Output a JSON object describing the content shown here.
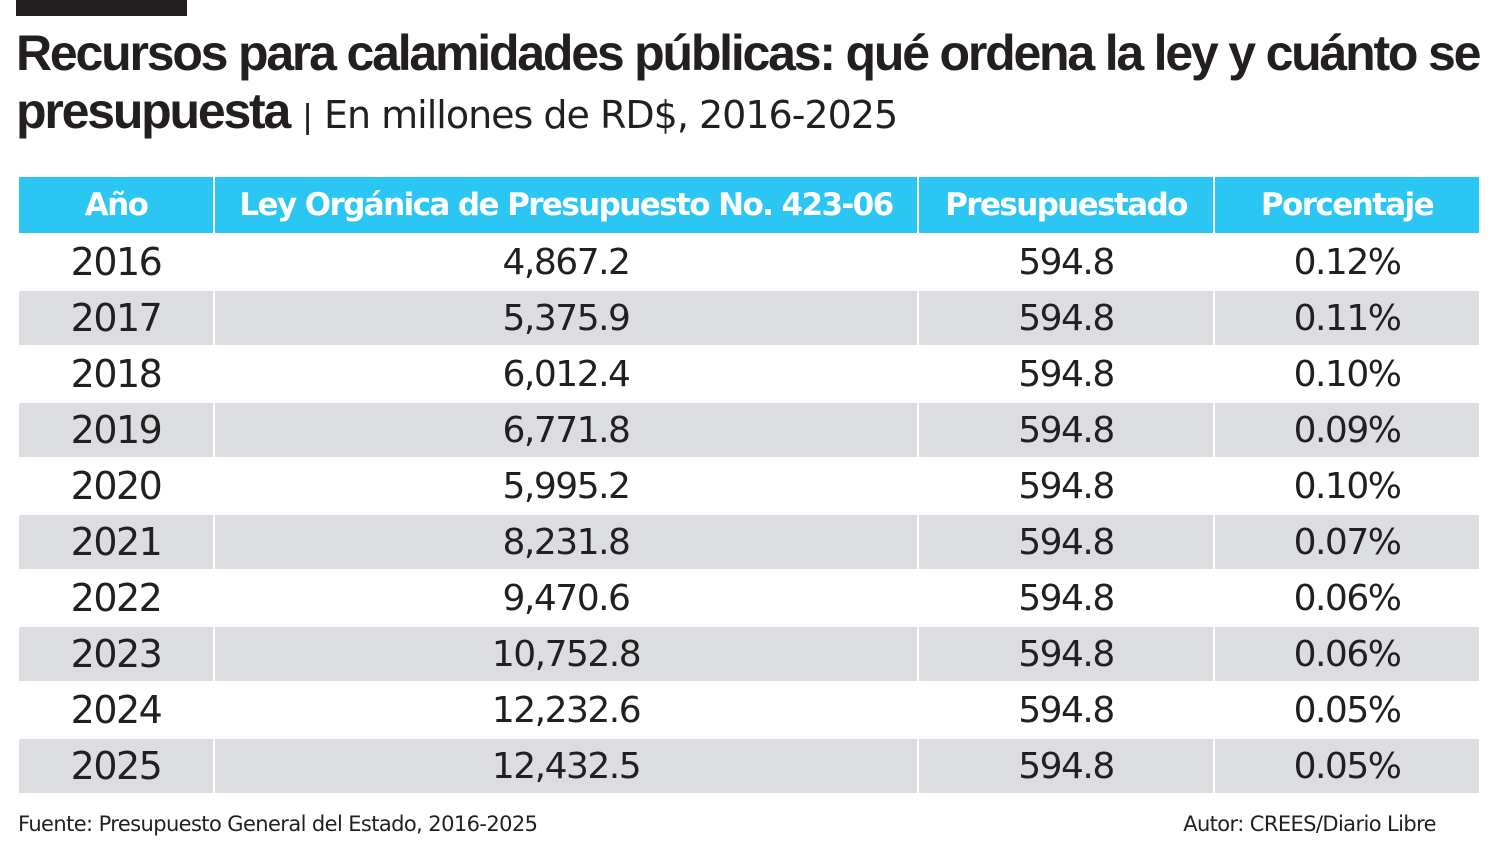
{
  "title": "Recursos para calamidades públicas: qué ordena la ley y cuánto se presupuesta",
  "subtitle": "En millones de RD$, 2016-2025",
  "colors": {
    "header": "#2cc6f3",
    "alt_row": "#dcdde0",
    "text": "#231f20"
  },
  "chart_data": {
    "type": "table",
    "columns": [
      "Año",
      "Ley Orgánica de Presupuesto No. 423-06",
      "Presupuestado",
      "Porcentaje"
    ],
    "rows": [
      [
        "2016",
        "4,867.2",
        "594.8",
        "0.12%"
      ],
      [
        "2017",
        "5,375.9",
        "594.8",
        "0.11%"
      ],
      [
        "2018",
        "6,012.4",
        "594.8",
        "0.10%"
      ],
      [
        "2019",
        "6,771.8",
        "594.8",
        "0.09%"
      ],
      [
        "2020",
        "5,995.2",
        "594.8",
        "0.10%"
      ],
      [
        "2021",
        "8,231.8",
        "594.8",
        "0.07%"
      ],
      [
        "2022",
        "9,470.6",
        "594.8",
        "0.06%"
      ],
      [
        "2023",
        "10,752.8",
        "594.8",
        "0.06%"
      ],
      [
        "2024",
        "12,232.6",
        "594.8",
        "0.05%"
      ],
      [
        "2025",
        "12,432.5",
        "594.8",
        "0.05%"
      ]
    ]
  },
  "footer": {
    "source": "Fuente:  Presupuesto General del Estado, 2016-2025",
    "author": "Autor:  CREES/Diario Libre"
  }
}
